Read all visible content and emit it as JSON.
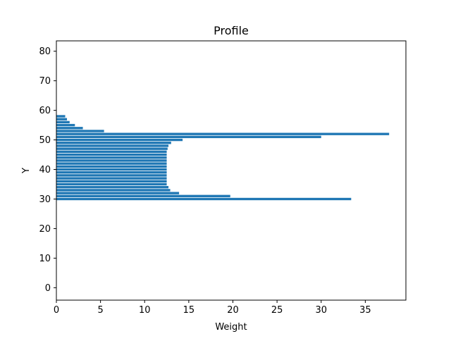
{
  "chart_data": {
    "type": "bar",
    "orientation": "horizontal",
    "title": "Profile",
    "xlabel": "Weight",
    "ylabel": "Y",
    "xlim": [
      0,
      39.6
    ],
    "ylim": [
      -4.2,
      83.5
    ],
    "xticks": [
      0,
      5,
      10,
      15,
      20,
      25,
      30,
      35
    ],
    "yticks": [
      0,
      10,
      20,
      30,
      40,
      50,
      60,
      70,
      80
    ],
    "grid": false,
    "bar_color": "#1f77b4",
    "bar_height": 0.8,
    "bars": [
      {
        "y": 30,
        "value": 33.4
      },
      {
        "y": 31,
        "value": 19.7
      },
      {
        "y": 32,
        "value": 13.9
      },
      {
        "y": 33,
        "value": 12.9
      },
      {
        "y": 34,
        "value": 12.7
      },
      {
        "y": 35,
        "value": 12.5
      },
      {
        "y": 36,
        "value": 12.5
      },
      {
        "y": 37,
        "value": 12.5
      },
      {
        "y": 38,
        "value": 12.5
      },
      {
        "y": 39,
        "value": 12.5
      },
      {
        "y": 40,
        "value": 12.5
      },
      {
        "y": 41,
        "value": 12.5
      },
      {
        "y": 42,
        "value": 12.5
      },
      {
        "y": 43,
        "value": 12.5
      },
      {
        "y": 44,
        "value": 12.5
      },
      {
        "y": 45,
        "value": 12.5
      },
      {
        "y": 46,
        "value": 12.5
      },
      {
        "y": 47,
        "value": 12.6
      },
      {
        "y": 48,
        "value": 12.7
      },
      {
        "y": 49,
        "value": 13.0
      },
      {
        "y": 50,
        "value": 14.3
      },
      {
        "y": 51,
        "value": 30.0
      },
      {
        "y": 52,
        "value": 37.7
      },
      {
        "y": 53,
        "value": 5.4
      },
      {
        "y": 54,
        "value": 3.0
      },
      {
        "y": 55,
        "value": 2.1
      },
      {
        "y": 56,
        "value": 1.5
      },
      {
        "y": 57,
        "value": 1.2
      },
      {
        "y": 58,
        "value": 1.0
      }
    ]
  }
}
